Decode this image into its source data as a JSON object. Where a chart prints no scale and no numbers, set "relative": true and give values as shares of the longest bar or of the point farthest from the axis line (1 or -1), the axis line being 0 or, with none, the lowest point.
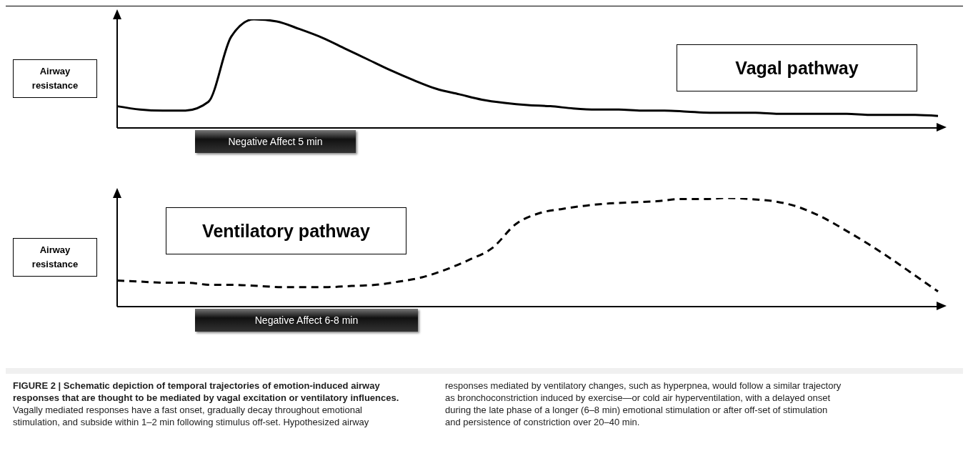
{
  "chart_data": [
    {
      "type": "line",
      "title": "Vagal pathway",
      "ylabel": "Airway resistance",
      "relative": true,
      "grid": false,
      "legend": false,
      "marker": "none",
      "line_style": "solid",
      "categories": [
        null,
        null,
        null,
        null,
        null,
        null,
        null,
        null,
        null,
        null,
        null,
        null,
        null,
        null,
        null,
        null,
        null,
        null,
        null,
        null,
        null,
        null,
        null,
        null,
        null,
        null,
        null,
        null,
        null,
        null,
        null,
        null,
        null,
        null,
        null,
        null,
        null
      ],
      "series": [
        {
          "color": "#000000",
          "values": [
            0.2,
            0.17,
            0.16,
            0.16,
            0.24,
            0.84,
            1.0,
            0.98,
            0.91,
            0.83,
            0.73,
            0.63,
            0.53,
            0.44,
            0.36,
            0.31,
            0.26,
            0.23,
            0.21,
            0.2,
            0.18,
            0.17,
            0.17,
            0.16,
            0.16,
            0.15,
            0.14,
            0.14,
            0.14,
            0.13,
            0.13,
            0.13,
            0.13,
            0.12,
            0.12,
            0.12,
            0.11
          ]
        }
      ],
      "annotations": [
        "Negative Affect  5 min"
      ]
    },
    {
      "type": "line",
      "title": "Ventilatory pathway",
      "ylabel": "Airway resistance",
      "relative": true,
      "grid": false,
      "legend": false,
      "marker": "none",
      "line_style": "dashed",
      "categories": [
        null,
        null,
        null,
        null,
        null,
        null,
        null,
        null,
        null,
        null,
        null,
        null,
        null,
        null,
        null,
        null,
        null,
        null,
        null,
        null,
        null,
        null,
        null,
        null,
        null,
        null,
        null,
        null,
        null,
        null,
        null,
        null,
        null,
        null,
        null,
        null
      ],
      "series": [
        {
          "color": "#000000",
          "values": [
            0.24,
            0.23,
            0.22,
            0.22,
            0.2,
            0.2,
            0.19,
            0.18,
            0.18,
            0.18,
            0.19,
            0.2,
            0.23,
            0.27,
            0.34,
            0.43,
            0.54,
            0.76,
            0.86,
            0.9,
            0.93,
            0.95,
            0.96,
            0.97,
            0.99,
            0.99,
            1.0,
            0.99,
            0.97,
            0.92,
            0.83,
            0.71,
            0.58,
            0.44,
            0.29,
            0.14
          ]
        }
      ],
      "annotations": [
        "Negative Affect  6-8 min",
        "FIGURE 2 | Schematic depiction of temporal trajectories of emotion-induced airway responses that are thought to be mediated by vagal excitation or ventilatory influences.",
        "Vagally mediated responses have a fast onset, gradually decay throughout emotional stimulation, and subside within 1–2 min following stimulus off-set. Hypothesized airway responses mediated by ventilatory changes, such as hyperpnea, would follow a similar trajectory as bronchoconstriction induced by exercise—or cold air hyperventilation, with a delayed onset during the late phase of a longer (6–8 min) emotional stimulation or after off-set of stimulation and persistence of constriction over 20–40 min."
      ]
    }
  ]
}
